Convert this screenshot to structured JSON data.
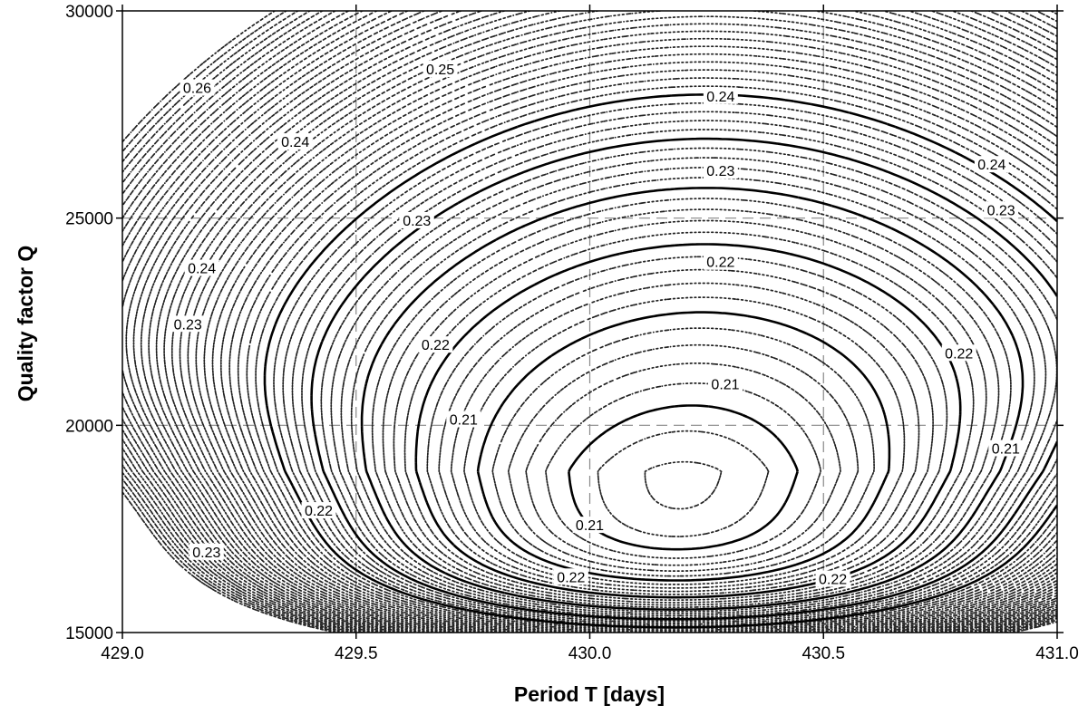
{
  "chart_data": {
    "type": "contour",
    "xlabel": "Period T [days]",
    "ylabel": "Quality factor Q",
    "xlim": [
      429.0,
      431.0
    ],
    "ylim": [
      15000,
      30000
    ],
    "x_ticks": [
      "429.0",
      "429.5",
      "430.0",
      "430.5",
      "431.0"
    ],
    "y_ticks": [
      "15000",
      "20000",
      "25000",
      "30000"
    ],
    "x_tick_values": [
      429.0,
      429.5,
      430.0,
      430.5,
      431.0
    ],
    "y_tick_values": [
      15000,
      20000,
      25000,
      30000
    ],
    "grid": "dashed at major ticks",
    "minimum": {
      "T": 430.2,
      "Q": 18900
    },
    "labeled_levels": [
      0.21,
      0.22,
      0.23,
      0.24,
      0.25,
      0.26
    ],
    "minor_level_step": 0.002,
    "contour_labels": [
      {
        "text": "0.26",
        "T": 429.16,
        "Q": 28150
      },
      {
        "text": "0.25",
        "T": 429.68,
        "Q": 28600
      },
      {
        "text": "0.24",
        "T": 430.28,
        "Q": 27950
      },
      {
        "text": "0.24",
        "T": 429.37,
        "Q": 26850
      },
      {
        "text": "0.24",
        "T": 430.86,
        "Q": 26300
      },
      {
        "text": "0.24",
        "T": 429.17,
        "Q": 23800
      },
      {
        "text": "0.23",
        "T": 430.28,
        "Q": 26150
      },
      {
        "text": "0.23",
        "T": 429.63,
        "Q": 24950
      },
      {
        "text": "0.23",
        "T": 430.88,
        "Q": 25200
      },
      {
        "text": "0.23",
        "T": 429.14,
        "Q": 22450
      },
      {
        "text": "0.23",
        "T": 429.18,
        "Q": 16950
      },
      {
        "text": "0.22",
        "T": 430.28,
        "Q": 23950
      },
      {
        "text": "0.22",
        "T": 429.67,
        "Q": 21950
      },
      {
        "text": "0.22",
        "T": 430.79,
        "Q": 21750
      },
      {
        "text": "0.22",
        "T": 429.42,
        "Q": 17950
      },
      {
        "text": "0.22",
        "T": 429.96,
        "Q": 16350
      },
      {
        "text": "0.22",
        "T": 430.52,
        "Q": 16300
      },
      {
        "text": "0.21",
        "T": 430.29,
        "Q": 21000
      },
      {
        "text": "0.21",
        "T": 429.73,
        "Q": 20150
      },
      {
        "text": "0.21",
        "T": 430.89,
        "Q": 19450
      },
      {
        "text": "0.21",
        "T": 430.0,
        "Q": 17600
      }
    ]
  }
}
